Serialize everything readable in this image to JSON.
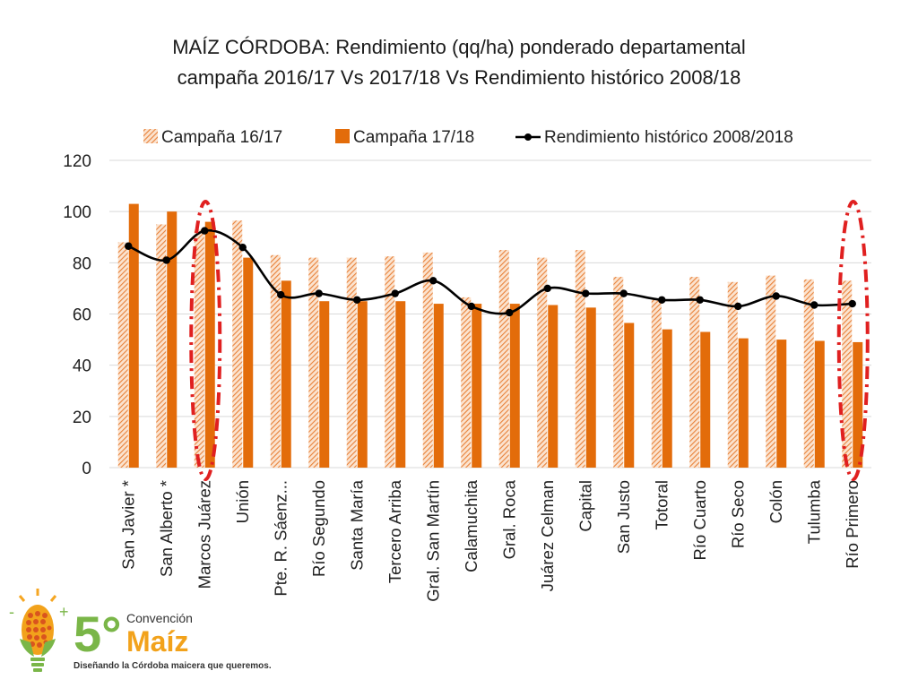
{
  "chart_data": {
    "type": "bar",
    "title": "MAÍZ CÓRDOBA: Rendimiento (qq/ha) ponderado departamental",
    "subtitle": "campaña 2016/17 Vs 2017/18 Vs Rendimiento histórico 2008/18",
    "xlabel": "",
    "ylabel": "",
    "ylim": [
      0,
      120
    ],
    "yticks": [
      "0",
      "20",
      "40",
      "60",
      "80",
      "100",
      "120"
    ],
    "grid": true,
    "legend_position": "top",
    "categories": [
      "San Javier *",
      "San Alberto *",
      "Marcos Juárez",
      "Unión",
      "Pte. R. Sáenz...",
      "Río Segundo",
      "Santa María",
      "Tercero Arriba",
      "Gral. San Martín",
      "Calamuchita",
      "Gral. Roca",
      "Juárez Celman",
      "Capital",
      "San Justo",
      "Totoral",
      "Río Cuarto",
      "Río Seco",
      "Colón",
      "Tulumba",
      "Río Primero"
    ],
    "series": [
      {
        "name": "Campaña 16/17",
        "kind": "bar-hatched",
        "color": "#E8823A",
        "values": [
          88,
          95,
          93,
          96.5,
          83,
          82,
          82,
          82.5,
          84,
          66.5,
          85,
          82,
          85,
          74.5,
          66,
          74.5,
          72.5,
          75,
          73.5,
          73
        ]
      },
      {
        "name": "Campaña 17/18",
        "kind": "bar",
        "color": "#E36C0A",
        "values": [
          103,
          100,
          96,
          82,
          73,
          65,
          65,
          65,
          64,
          64,
          64,
          63.5,
          62.5,
          56.5,
          54,
          53,
          50.5,
          50,
          49.5,
          49
        ]
      },
      {
        "name": "Rendimiento histórico 2008/2018",
        "kind": "line",
        "color": "#000000",
        "values": [
          86.5,
          81,
          92.5,
          86,
          67.5,
          68,
          65.5,
          68,
          73,
          63,
          60.5,
          70,
          68,
          68,
          65.5,
          65.5,
          63,
          67,
          63.5,
          64
        ]
      }
    ],
    "annotations": [
      {
        "type": "dashed-ellipse",
        "color": "#E02020",
        "target": "Marcos Juárez"
      },
      {
        "type": "dashed-ellipse",
        "color": "#E02020",
        "target": "Río Primero"
      }
    ]
  },
  "logo": {
    "number": "5°",
    "label": "Convención",
    "brand": "Maíz",
    "tagline": "Diseñando la Córdoba maicera que queremos.",
    "icon": "corn-lightbulb-icon"
  }
}
